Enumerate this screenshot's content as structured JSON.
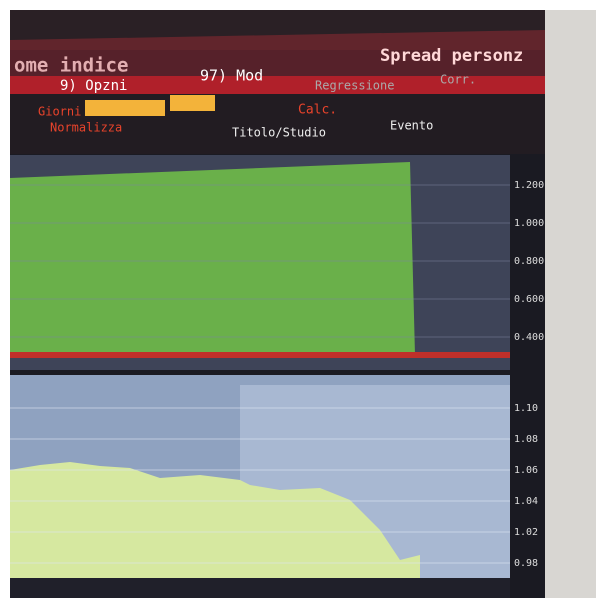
{
  "header": {
    "title": "ome indice",
    "right_title": "Spread personz"
  },
  "toolbar": {
    "options": "9) Opzni",
    "mod": "97) Mod",
    "regression": "Regressione",
    "corr": "Corr.",
    "days": "Giorni",
    "normalize": "Normalizza",
    "calc": "Calc.",
    "study": "Titolo/Studio",
    "event": "Evento"
  },
  "upper_axis": [
    "1.200",
    "1.000",
    "0.800",
    "0.600",
    "0.400"
  ],
  "lower_axis": [
    "1.10",
    "1.08",
    "1.06",
    "1.04",
    "1.02",
    "0.98"
  ]
}
